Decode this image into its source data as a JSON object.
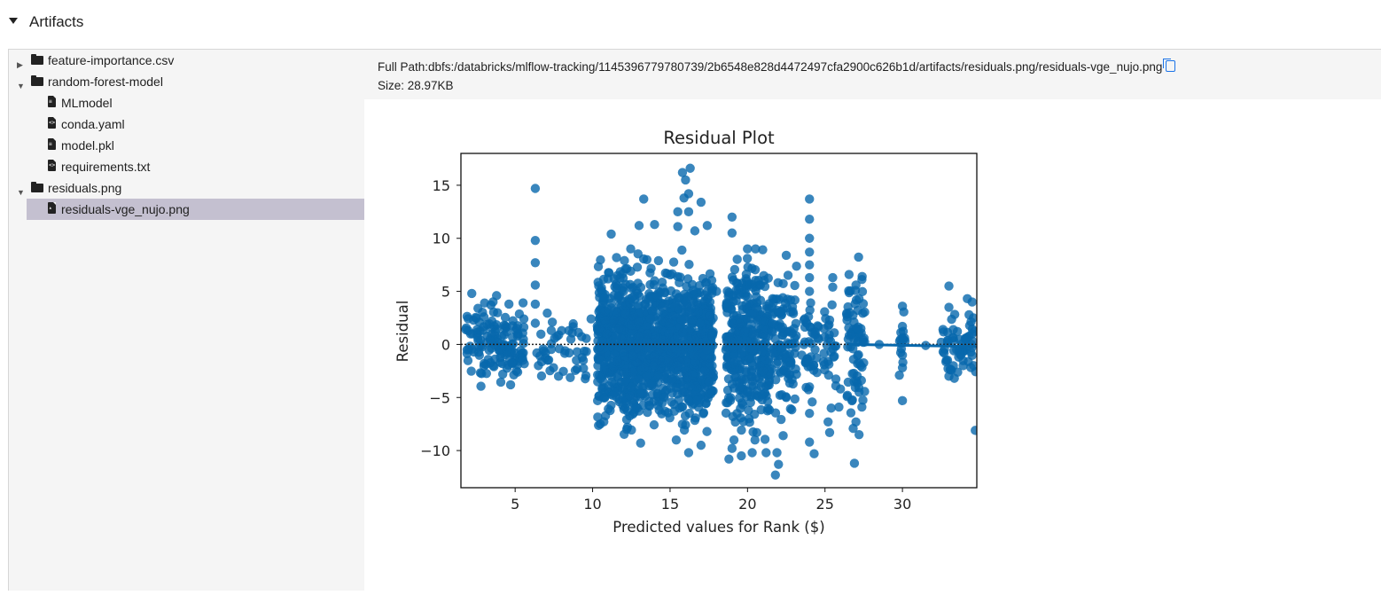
{
  "section": {
    "title": "Artifacts"
  },
  "tree": [
    {
      "label": "feature-importance.csv",
      "type": "folder",
      "expanded": false,
      "depth": 0
    },
    {
      "label": "random-forest-model",
      "type": "folder",
      "expanded": true,
      "depth": 0
    },
    {
      "label": "MLmodel",
      "type": "file",
      "depth": 1
    },
    {
      "label": "conda.yaml",
      "type": "code-file",
      "depth": 1
    },
    {
      "label": "model.pkl",
      "type": "file",
      "depth": 1
    },
    {
      "label": "requirements.txt",
      "type": "code-file",
      "depth": 1
    },
    {
      "label": "residuals.png",
      "type": "folder",
      "expanded": true,
      "depth": 0
    },
    {
      "label": "residuals-vge_nujo.png",
      "type": "image-file",
      "depth": 1,
      "selected": true
    }
  ],
  "artifact": {
    "full_path": "Full Path:dbfs:/databricks/mlflow-tracking/1145396779780739/2b6548e828d4472497cfa2900c626b1d/artifacts/residuals.png/residuals-vge_nujo.png",
    "size": "Size: 28.97KB"
  },
  "colors": {
    "selected_bg": "#c4c0d0",
    "pane_bg": "#f5f5f5",
    "point": "#0868ac",
    "copy_icon": "#1a73e8"
  },
  "chart_data": {
    "type": "scatter",
    "title": "Residual Plot",
    "xlabel": "Predicted values for Rank ($)",
    "ylabel": "Residual",
    "xlim": [
      1.5,
      34.8
    ],
    "ylim": [
      -13.5,
      18
    ],
    "xticks": [
      5,
      10,
      15,
      20,
      25,
      30
    ],
    "yticks": [
      -10,
      -5,
      0,
      5,
      10,
      15
    ],
    "grid": false,
    "reference_line": {
      "y": 0,
      "style": "dotted"
    },
    "series": [
      {
        "points": [
          [
            6.3,
            14.7
          ],
          [
            6.3,
            9.8
          ],
          [
            6.3,
            7.7
          ],
          [
            6.3,
            5.6
          ],
          [
            6.3,
            3.8
          ],
          [
            6.3,
            2.0
          ],
          [
            6.4,
            -0.8
          ],
          [
            6.5,
            -2.0
          ],
          [
            16.3,
            16.6
          ],
          [
            15.8,
            16.2
          ],
          [
            16.0,
            15.5
          ],
          [
            16.2,
            14.2
          ],
          [
            13.3,
            13.7
          ],
          [
            15.9,
            13.8
          ],
          [
            17.0,
            13.4
          ],
          [
            16.2,
            12.5
          ],
          [
            15.5,
            12.5
          ],
          [
            11.2,
            10.4
          ],
          [
            13.0,
            11.2
          ],
          [
            14.0,
            11.3
          ],
          [
            15.5,
            11.1
          ],
          [
            17.4,
            11.2
          ],
          [
            16.6,
            10.7
          ],
          [
            19.0,
            12.0
          ],
          [
            19.0,
            10.5
          ],
          [
            20.4,
            3.0
          ],
          [
            19.0,
            -9.8
          ],
          [
            20.3,
            -10.2
          ],
          [
            21.2,
            -10.2
          ],
          [
            19.6,
            -10.5
          ],
          [
            18.8,
            -10.8
          ],
          [
            20.8,
            -2.0
          ],
          [
            20.1,
            -7.0
          ],
          [
            15.4,
            -9.0
          ],
          [
            13.1,
            -9.3
          ],
          [
            16.2,
            -10.2
          ],
          [
            17.0,
            -9.5
          ],
          [
            12.2,
            -8.0
          ],
          [
            10.5,
            -7.5
          ],
          [
            21.9,
            -10.2
          ],
          [
            22.0,
            -11.3
          ],
          [
            21.8,
            -12.3
          ],
          [
            22.3,
            -8.6
          ],
          [
            22.5,
            8.4
          ],
          [
            24.0,
            13.7
          ],
          [
            24.0,
            11.8
          ],
          [
            24.0,
            10.0
          ],
          [
            24.0,
            8.7
          ],
          [
            24.0,
            7.5
          ],
          [
            24.0,
            6.3
          ],
          [
            24.0,
            5.0
          ],
          [
            24.0,
            -4.0
          ],
          [
            24.0,
            -6.5
          ],
          [
            24.0,
            -9.2
          ],
          [
            24.3,
            -10.3
          ],
          [
            25.5,
            6.3
          ],
          [
            25.5,
            5.4
          ],
          [
            25.3,
            2.3
          ],
          [
            25.6,
            1.1
          ],
          [
            25.7,
            -3.9
          ],
          [
            25.9,
            -5.9
          ],
          [
            26.0,
            -4.2
          ],
          [
            25.4,
            -6.0
          ],
          [
            25.2,
            -7.3
          ],
          [
            25.3,
            -8.3
          ],
          [
            27.0,
            5.6
          ],
          [
            27.4,
            6.4
          ],
          [
            27.2,
            4.3
          ],
          [
            26.6,
            3.0
          ],
          [
            27.2,
            -8.5
          ],
          [
            27.0,
            -7.3
          ],
          [
            26.9,
            -11.2
          ],
          [
            27.2,
            -4.5
          ],
          [
            30.0,
            3.6
          ],
          [
            30.0,
            1.7
          ],
          [
            30.0,
            0.6
          ],
          [
            30.0,
            -1.0
          ],
          [
            30.0,
            -2.2
          ],
          [
            30.0,
            -5.3
          ],
          [
            29.8,
            -2.9
          ],
          [
            33.0,
            5.5
          ],
          [
            33.0,
            3.5
          ],
          [
            33.0,
            -3.0
          ],
          [
            34.7,
            -8.1
          ],
          [
            34.5,
            4.0
          ],
          [
            34.3,
            2.8
          ],
          [
            34.5,
            1.0
          ],
          [
            34.6,
            -2.0
          ],
          [
            1.9,
            -0.5
          ],
          [
            2.2,
            4.8
          ],
          [
            2.6,
            3.4
          ],
          [
            3.0,
            -1.8
          ],
          [
            3.5,
            2.2
          ],
          [
            4.2,
            -2.8
          ],
          [
            4.6,
            3.8
          ],
          [
            5.1,
            1.5
          ],
          [
            5.5,
            -1.5
          ],
          [
            3.8,
            4.6
          ],
          [
            7.1,
            -1.5
          ],
          [
            7.4,
            2.1
          ],
          [
            7.8,
            -3.0
          ],
          [
            8.0,
            1.3
          ],
          [
            8.6,
            0.5
          ],
          [
            9.4,
            -1.5
          ],
          [
            9.9,
            2.4
          ],
          [
            9.0,
            -2.3
          ],
          [
            12.0,
            5.0
          ],
          [
            12.5,
            -4.0
          ],
          [
            13.0,
            3.0
          ],
          [
            13.5,
            -3.0
          ],
          [
            14.0,
            6.0
          ],
          [
            14.5,
            -5.5
          ],
          [
            15.0,
            2.0
          ],
          [
            15.5,
            -2.0
          ],
          [
            16.0,
            4.0
          ],
          [
            16.5,
            -1.0
          ],
          [
            17.0,
            1.0
          ],
          [
            17.5,
            -3.5
          ],
          [
            18.0,
            5.0
          ],
          [
            19.5,
            2.0
          ],
          [
            19.5,
            -4.0
          ],
          [
            20.0,
            4.5
          ],
          [
            21.0,
            -2.5
          ],
          [
            22.0,
            3.0
          ],
          [
            22.5,
            -5.0
          ],
          [
            23.0,
            1.5
          ],
          [
            23.5,
            -1.0
          ],
          [
            26.5,
            0.5
          ],
          [
            27.3,
            -2.0
          ],
          [
            28.5,
            0.0
          ],
          [
            31.5,
            -0.1
          ],
          [
            32.5,
            0.2
          ],
          [
            33.5,
            -0.5
          ]
        ]
      }
    ]
  }
}
